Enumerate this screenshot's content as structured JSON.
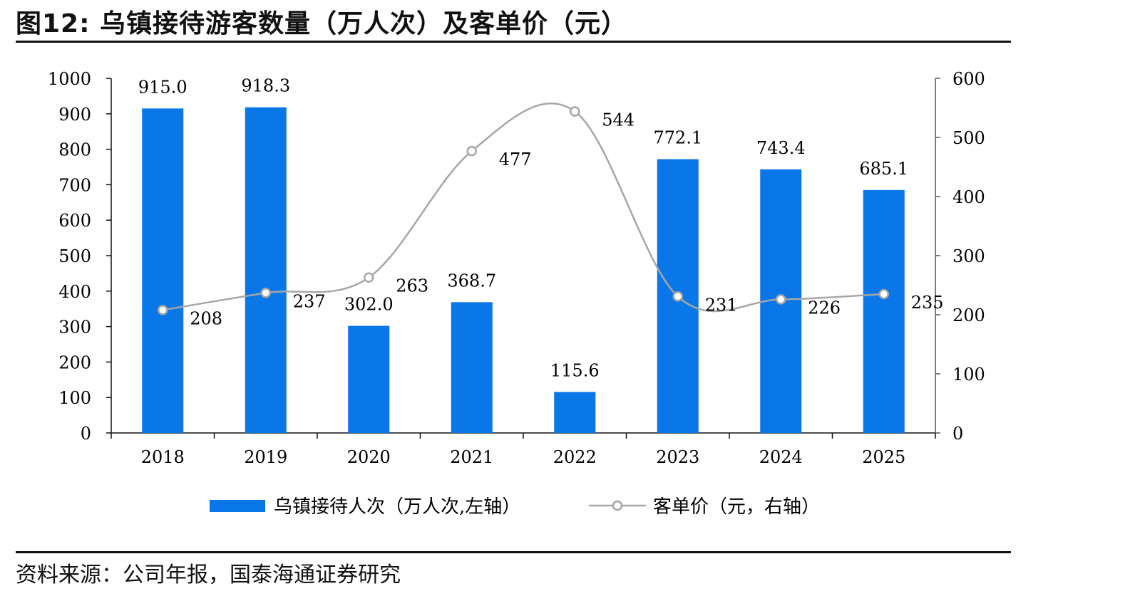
{
  "figure": {
    "title": "图12:  乌镇接待游客数量（万人次）及客单价（元）",
    "source": "资料来源：公司年报，国泰海通证券研究"
  },
  "colors": {
    "bar": "#0A77E8",
    "line": "#A6A6A6",
    "marker_fill": "#FFFFFF",
    "axis": "#7F7F7F"
  },
  "chart_data": {
    "type": "bar",
    "categories": [
      "2018",
      "2019",
      "2020",
      "2021",
      "2022",
      "2023",
      "2024",
      "2025"
    ],
    "series": [
      {
        "name": "乌镇接待人次（万人次,左轴）",
        "type": "bar",
        "axis": "left",
        "values": [
          915.0,
          918.3,
          302.0,
          368.7,
          115.6,
          772.1,
          743.4,
          685.1
        ],
        "labels": [
          "915.0",
          "918.3",
          "302.0",
          "368.7",
          "115.6",
          "772.1",
          "743.4",
          "685.1"
        ]
      },
      {
        "name": "客单价（元，右轴）",
        "type": "line",
        "smooth": true,
        "marker": "circle",
        "axis": "right",
        "values": [
          208,
          237,
          263,
          477,
          544,
          231,
          226,
          235
        ],
        "labels": [
          "208",
          "237",
          "263",
          "477",
          "544",
          "231",
          "226",
          "235"
        ]
      }
    ],
    "y_left": {
      "min": 0,
      "max": 1000,
      "ticks": [
        "0",
        "100",
        "200",
        "300",
        "400",
        "500",
        "600",
        "700",
        "800",
        "900",
        "1000"
      ]
    },
    "y_right": {
      "min": 0,
      "max": 600,
      "ticks": [
        "0",
        "100",
        "200",
        "300",
        "400",
        "500",
        "600"
      ]
    },
    "grid": false,
    "legend_position": "bottom"
  }
}
